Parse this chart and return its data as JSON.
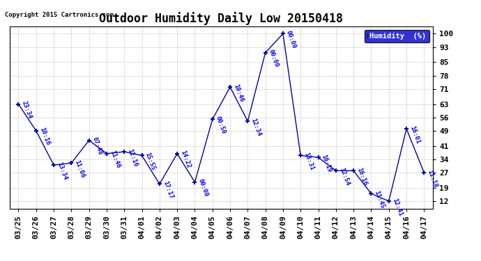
{
  "title": "Outdoor Humidity Daily Low 20150418",
  "copyright": "Copyright 2015 Cartronics.com",
  "legend_label": "Humidity  (%)",
  "x_labels": [
    "03/25",
    "03/26",
    "03/27",
    "03/28",
    "03/29",
    "03/30",
    "03/31",
    "04/01",
    "04/02",
    "04/03",
    "04/04",
    "04/05",
    "04/06",
    "04/07",
    "04/08",
    "04/09",
    "04/10",
    "04/11",
    "04/12",
    "04/13",
    "04/14",
    "04/15",
    "04/16",
    "04/17"
  ],
  "y_values": [
    63,
    49,
    31,
    32,
    44,
    37,
    38,
    36,
    21,
    37,
    22,
    55,
    72,
    54,
    90,
    100,
    36,
    35,
    28,
    28,
    16,
    12,
    50,
    27
  ],
  "point_labels": [
    "23:34",
    "10:16",
    "13:34",
    "11:06",
    "07:48",
    "11:46",
    "12:16",
    "15:55",
    "17:17",
    "14:22",
    "00:00",
    "00:50",
    "10:46",
    "12:34",
    "00:00",
    "00:00",
    "13:31",
    "16:19",
    "12:54",
    "16:16",
    "11:45",
    "12:41",
    "16:01",
    "11:18"
  ],
  "line_color": "#0000AA",
  "marker_color": "#0000AA",
  "label_color": "#0000EE",
  "background_color": "#ffffff",
  "grid_color": "#bbbbbb",
  "y_ticks": [
    12,
    19,
    27,
    34,
    41,
    49,
    56,
    63,
    71,
    78,
    85,
    93,
    100
  ],
  "ylim": [
    8,
    104
  ],
  "title_fontsize": 12,
  "tick_fontsize": 8,
  "legend_bg": "#0000CC",
  "legend_text_color": "#ffffff"
}
